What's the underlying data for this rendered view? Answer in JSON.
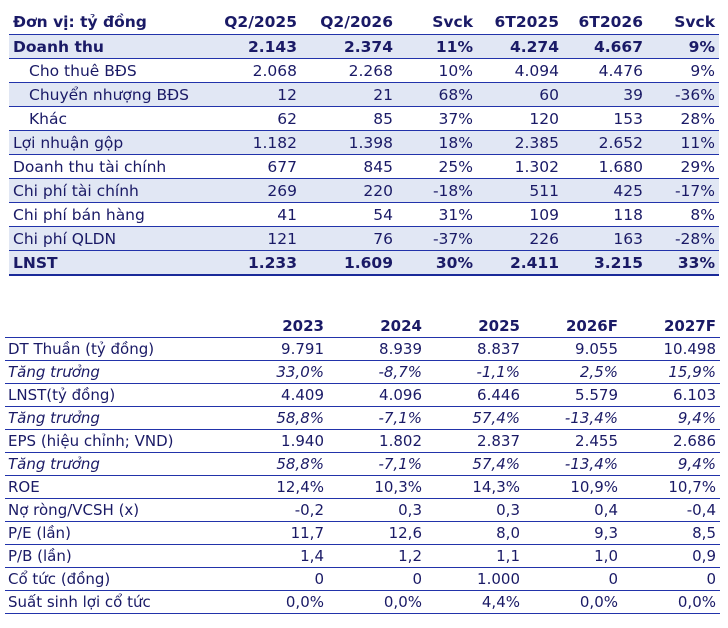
{
  "table1": {
    "headers": [
      "Đơn vị: tỷ đồng",
      "Q2/2025",
      "Q2/2026",
      "Svck",
      "6T2025",
      "6T2026",
      "Svck"
    ],
    "rows": [
      [
        "Doanh thu",
        "2.143",
        "2.374",
        "11%",
        "4.274",
        "4.667",
        "9%"
      ],
      [
        "Cho thuê BĐS",
        "2.068",
        "2.268",
        "10%",
        "4.094",
        "4.476",
        "9%"
      ],
      [
        "Chuyển nhượng BĐS",
        "12",
        "21",
        "68%",
        "60",
        "39",
        "-36%"
      ],
      [
        "Khác",
        "62",
        "85",
        "37%",
        "120",
        "153",
        "28%"
      ],
      [
        "Lợi nhuận gộp",
        "1.182",
        "1.398",
        "18%",
        "2.385",
        "2.652",
        "11%"
      ],
      [
        "Doanh thu tài chính",
        "677",
        "845",
        "25%",
        "1.302",
        "1.680",
        "29%"
      ],
      [
        "Chi phí tài chính",
        "269",
        "220",
        "-18%",
        "511",
        "425",
        "-17%"
      ],
      [
        "Chi phí bán hàng",
        "41",
        "54",
        "31%",
        "109",
        "118",
        "8%"
      ],
      [
        "Chi phí QLDN",
        "121",
        "76",
        "-37%",
        "226",
        "163",
        "-28%"
      ],
      [
        "LNST",
        "1.233",
        "1.609",
        "30%",
        "2.411",
        "3.215",
        "33%"
      ]
    ]
  },
  "table2": {
    "headers": [
      "",
      "2023",
      "2024",
      "2025",
      "2026F",
      "2027F"
    ],
    "rows": [
      [
        "DT Thuần (tỷ đồng)",
        "9.791",
        "8.939",
        "8.837",
        "9.055",
        "10.498"
      ],
      [
        "Tăng trưởng",
        "33,0%",
        "-8,7%",
        "-1,1%",
        "2,5%",
        "15,9%"
      ],
      [
        "LNST(tỷ đồng)",
        "4.409",
        "4.096",
        "6.446",
        "5.579",
        "6.103"
      ],
      [
        "Tăng trưởng",
        "58,8%",
        "-7,1%",
        "57,4%",
        "-13,4%",
        "9,4%"
      ],
      [
        "EPS (hiệu chỉnh; VND)",
        "1.940",
        "1.802",
        "2.837",
        "2.455",
        "2.686"
      ],
      [
        "Tăng trưởng",
        "58,8%",
        "-7,1%",
        "57,4%",
        "-13,4%",
        "9,4%"
      ],
      [
        "ROE",
        "12,4%",
        "10,3%",
        "14,3%",
        "10,9%",
        "10,7%"
      ],
      [
        "Nợ ròng/VCSH (x)",
        "-0,2",
        "0,3",
        "0,3",
        "0,4",
        "-0,4"
      ],
      [
        "P/E (lần)",
        "11,7",
        "12,6",
        "8,0",
        "9,3",
        "8,5"
      ],
      [
        "P/B (lần)",
        "1,4",
        "1,2",
        "1,1",
        "1,0",
        "0,9"
      ],
      [
        "Cổ tức (đồng)",
        "0",
        "0",
        "1.000",
        "0",
        "0"
      ],
      [
        "Suất sinh lợi cổ tức",
        "0,0%",
        "0,0%",
        "4,4%",
        "0,0%",
        "0,0%"
      ]
    ]
  }
}
